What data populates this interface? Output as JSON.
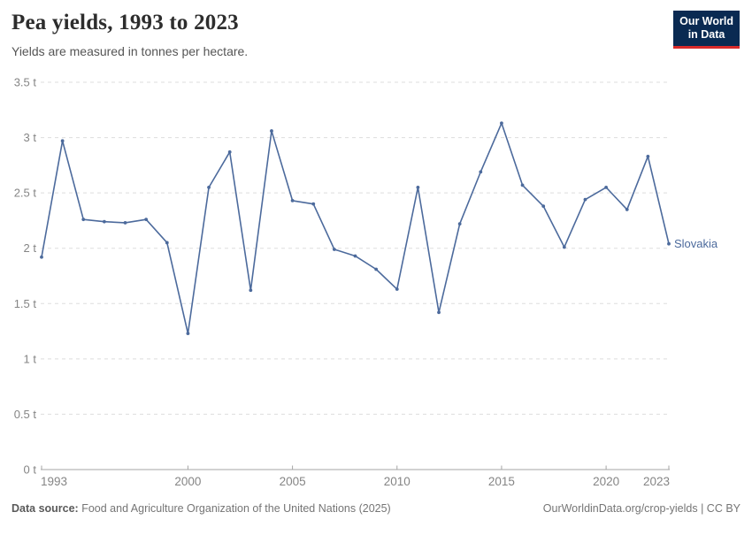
{
  "header": {
    "title": "Pea yields, 1993 to 2023",
    "subtitle": "Yields are measured in tonnes per hectare.",
    "logo": {
      "line1": "Our World",
      "line2": "in Data"
    }
  },
  "chart_data": {
    "type": "line",
    "title": "Pea yields, 1993 to 2023",
    "xlabel": "",
    "ylabel": "tonnes per hectare",
    "xlim": [
      1993,
      2023
    ],
    "ylim": [
      0,
      3.5
    ],
    "grid": "horizontal-dashed",
    "legend_position": "end-of-line-label",
    "x": [
      1993,
      1994,
      1995,
      1996,
      1997,
      1998,
      1999,
      2000,
      2001,
      2002,
      2003,
      2004,
      2005,
      2006,
      2007,
      2008,
      2009,
      2010,
      2011,
      2012,
      2013,
      2014,
      2015,
      2016,
      2017,
      2018,
      2019,
      2020,
      2021,
      2022,
      2023
    ],
    "series": [
      {
        "name": "Slovakia",
        "color": "#4C6A9C",
        "values": [
          1.92,
          2.97,
          2.26,
          2.24,
          2.23,
          2.26,
          2.05,
          1.23,
          2.55,
          2.87,
          1.62,
          3.06,
          2.43,
          2.4,
          1.99,
          1.93,
          1.81,
          1.63,
          2.55,
          1.42,
          2.22,
          2.69,
          3.13,
          2.57,
          2.38,
          2.01,
          2.44,
          2.55,
          2.35,
          2.83,
          2.04
        ]
      }
    ],
    "y_ticks": [
      {
        "value": 0,
        "label": "0 t"
      },
      {
        "value": 0.5,
        "label": "0.5 t"
      },
      {
        "value": 1,
        "label": "1 t"
      },
      {
        "value": 1.5,
        "label": "1.5 t"
      },
      {
        "value": 2,
        "label": "2 t"
      },
      {
        "value": 2.5,
        "label": "2.5 t"
      },
      {
        "value": 3,
        "label": "3 t"
      },
      {
        "value": 3.5,
        "label": "3.5 t"
      }
    ],
    "x_ticks": [
      {
        "value": 1993,
        "label": "1993"
      },
      {
        "value": 2000,
        "label": "2000"
      },
      {
        "value": 2005,
        "label": "2005"
      },
      {
        "value": 2010,
        "label": "2010"
      },
      {
        "value": 2015,
        "label": "2015"
      },
      {
        "value": 2020,
        "label": "2020"
      },
      {
        "value": 2023,
        "label": "2023"
      }
    ]
  },
  "colors": {
    "line": "#4C6A9C",
    "grid": "#dddddd",
    "axis": "#a5a5a5",
    "tick_label": "#858585",
    "entity_label": "#4C6A9C"
  },
  "footer": {
    "datasource_label": "Data source:",
    "datasource_text": " Food and Agriculture Organization of the United Nations (2025)",
    "link_text": "OurWorldinData.org/crop-yields | CC BY"
  }
}
